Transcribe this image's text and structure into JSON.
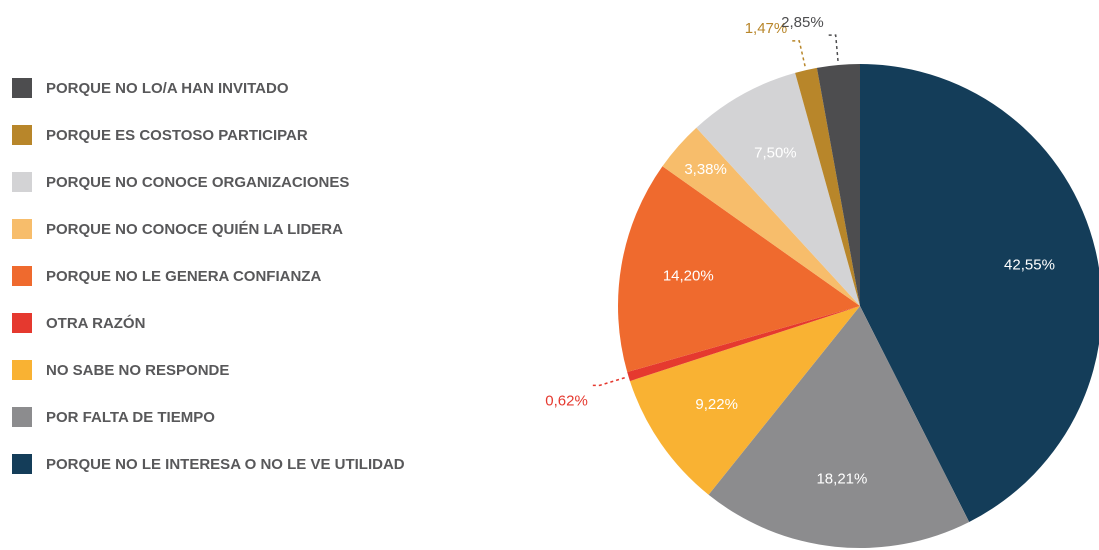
{
  "chart_data": {
    "type": "pie",
    "categories": [
      "PORQUE NO LE INTERESA O NO LE VE UTILIDAD",
      "POR FALTA DE TIEMPO",
      "NO SABE NO RESPONDE",
      "OTRA RAZÓN",
      "PORQUE NO LE GENERA CONFIANZA",
      "PORQUE NO CONOCE QUIÉN LA LIDERA",
      "PORQUE NO CONOCE ORGANIZACIONES",
      "PORQUE ES COSTOSO PARTICIPAR",
      "PORQUE NO LO/A HAN INVITADO"
    ],
    "values": [
      42.55,
      18.21,
      9.22,
      0.62,
      14.2,
      3.38,
      7.5,
      1.47,
      2.85
    ],
    "value_labels": [
      "42,55%",
      "18,21%",
      "9,22%",
      "0,62%",
      "14,20%",
      "3,38%",
      "7,50%",
      "1,47%",
      "2,85%"
    ],
    "colors": [
      "#143d59",
      "#8c8c8e",
      "#f9b233",
      "#e5392f",
      "#ef6a2e",
      "#f7bd6b",
      "#d3d3d5",
      "#b8862a",
      "#4d4d4f"
    ]
  }
}
